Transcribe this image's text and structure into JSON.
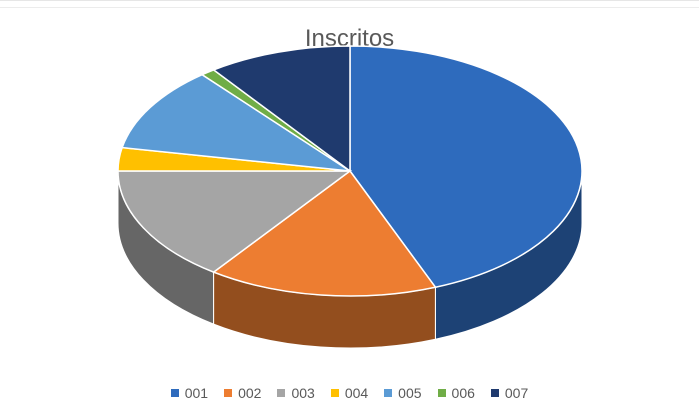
{
  "chart_data": {
    "type": "pie",
    "title": "Inscritos",
    "categories": [
      "001",
      "002",
      "003",
      "004",
      "005",
      "006",
      "007"
    ],
    "values": [
      44,
      16,
      15,
      3,
      11,
      1,
      10
    ],
    "colors": [
      "#2E6BBD",
      "#ED7D31",
      "#A5A5A5",
      "#FFC000",
      "#5B9BD5",
      "#70AD47",
      "#1F3A6E"
    ],
    "style": "3d",
    "legend_position": "bottom"
  }
}
